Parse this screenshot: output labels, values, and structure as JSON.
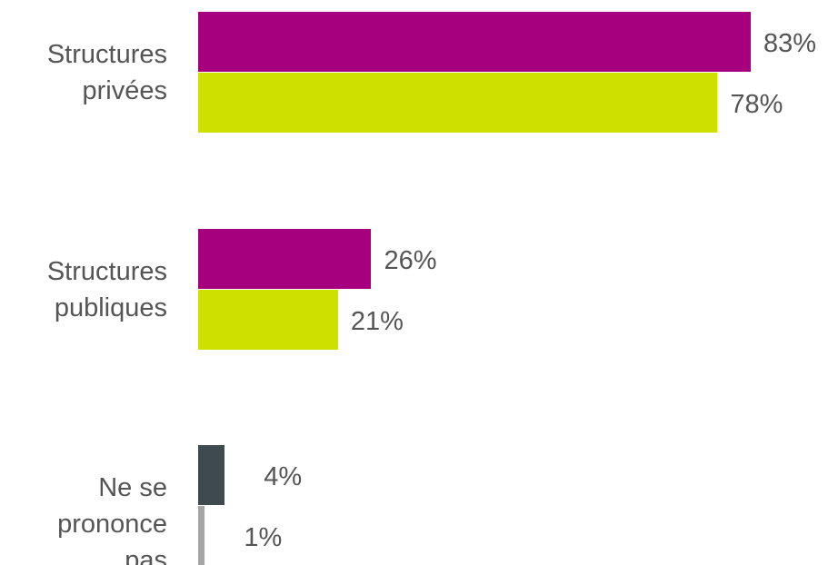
{
  "chart_data": {
    "type": "bar",
    "orientation": "horizontal",
    "categories": [
      "Structures\nprivées",
      "Structures\npubliques",
      "Ne se prononce\npas"
    ],
    "value_suffix": "%",
    "xlim": [
      0,
      100
    ],
    "grid": false,
    "legend": "none",
    "groups": [
      {
        "category": "Structures\nprivées",
        "bars": [
          {
            "value": 83,
            "color": "#a6007e"
          },
          {
            "value": 78,
            "color": "#cde000"
          }
        ]
      },
      {
        "category": "Structures\npubliques",
        "bars": [
          {
            "value": 26,
            "color": "#a6007e"
          },
          {
            "value": 21,
            "color": "#cde000"
          }
        ]
      },
      {
        "category": "Ne se prononce\npas",
        "bars": [
          {
            "value": 4,
            "color": "#3f4a4f"
          },
          {
            "value": 1,
            "color": "#a6a6a6"
          }
        ]
      }
    ]
  }
}
